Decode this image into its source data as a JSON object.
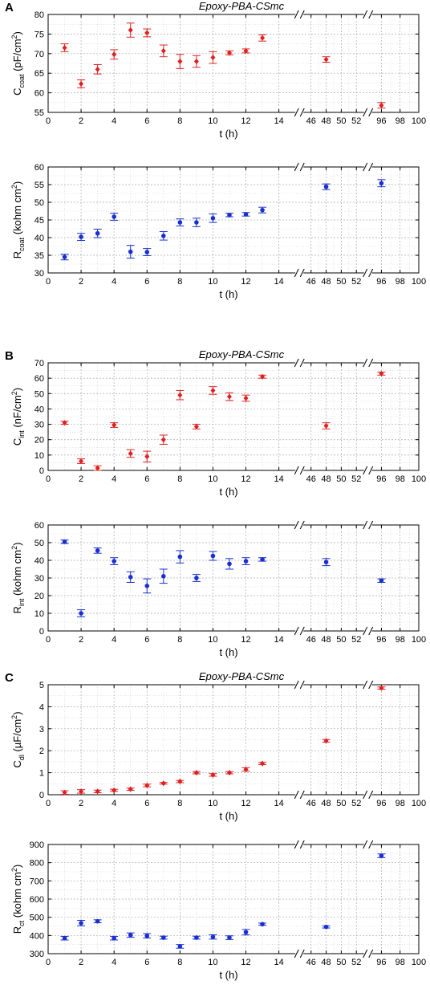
{
  "chart_data": [
    {
      "id": "A-top",
      "panel": "A",
      "type": "scatter",
      "title": "Epoxy-PBA-CSmc",
      "ylabel": {
        "base": "C",
        "sub": "coat",
        "unit_pre": " (pF/cm",
        "sup": "2",
        "unit_post": ")"
      },
      "xlabel": "t (h)",
      "ylim": [
        55,
        80
      ],
      "yticks": [
        55,
        60,
        65,
        70,
        75,
        80
      ],
      "xticks": [
        "0",
        "2",
        "4",
        "6",
        "8",
        "10",
        "12",
        "14",
        "46",
        "48",
        "50",
        "52",
        "96",
        "98",
        "100"
      ],
      "color": "#e02020",
      "marker": "diamond",
      "grid": true,
      "x": [
        "1",
        "2",
        "3",
        "4",
        "5",
        "6",
        "7",
        "8",
        "9",
        "10",
        "11",
        "12",
        "13",
        "48",
        "96"
      ],
      "values": [
        71.5,
        62.3,
        66.0,
        69.8,
        76.0,
        75.3,
        70.7,
        68.0,
        68.0,
        69.0,
        70.2,
        70.7,
        74.0,
        68.5,
        56.8
      ],
      "errors": [
        1.0,
        1.0,
        1.2,
        1.2,
        1.8,
        1.0,
        1.5,
        1.8,
        1.5,
        1.5,
        0.5,
        0.5,
        0.8,
        0.7,
        0.7
      ]
    },
    {
      "id": "A-bottom",
      "panel": "",
      "type": "scatter",
      "title": "",
      "ylabel": {
        "base": "R",
        "sub": "coat",
        "unit_pre": " (kohm cm",
        "sup": "2",
        "unit_post": ")"
      },
      "xlabel": "t (h)",
      "ylim": [
        30,
        60
      ],
      "yticks": [
        30,
        35,
        40,
        45,
        50,
        55,
        60
      ],
      "xticks": [
        "0",
        "2",
        "4",
        "6",
        "8",
        "10",
        "12",
        "14",
        "46",
        "48",
        "50",
        "52",
        "96",
        "98",
        "100"
      ],
      "color": "#1a2fd0",
      "marker": "circle",
      "grid": true,
      "x": [
        "1",
        "2",
        "3",
        "4",
        "5",
        "6",
        "7",
        "8",
        "9",
        "10",
        "11",
        "12",
        "13",
        "48",
        "96"
      ],
      "values": [
        34.5,
        40.2,
        41.2,
        45.9,
        36.0,
        35.9,
        40.5,
        44.3,
        44.3,
        45.5,
        46.4,
        46.6,
        47.8,
        54.4,
        55.4
      ],
      "errors": [
        0.8,
        1.0,
        1.2,
        1.0,
        1.8,
        1.0,
        1.2,
        1.0,
        1.2,
        1.2,
        0.5,
        0.5,
        0.8,
        0.8,
        1.0
      ]
    },
    {
      "id": "B-top",
      "panel": "B",
      "type": "scatter",
      "title": "Epoxy-PBA-CSmc",
      "ylabel": {
        "base": "C",
        "sub": "int",
        "unit_pre": " (nF/cm",
        "sup": "2",
        "unit_post": ")"
      },
      "xlabel": "t (h)",
      "ylim": [
        0,
        70
      ],
      "yticks": [
        0,
        10,
        20,
        30,
        40,
        50,
        60,
        70
      ],
      "xticks": [
        "0",
        "2",
        "4",
        "6",
        "8",
        "10",
        "12",
        "14",
        "46",
        "48",
        "50",
        "52",
        "96",
        "98",
        "100"
      ],
      "color": "#e02020",
      "marker": "diamond",
      "grid": true,
      "x": [
        "1",
        "2",
        "3",
        "4",
        "5",
        "6",
        "7",
        "8",
        "9",
        "10",
        "11",
        "12",
        "13",
        "48",
        "96"
      ],
      "values": [
        31.0,
        6.0,
        1.5,
        29.5,
        11.0,
        9.0,
        20.0,
        49.0,
        28.5,
        52.0,
        48.0,
        47.0,
        61.0,
        29.0,
        63.0
      ],
      "errors": [
        1.0,
        1.5,
        1.5,
        1.5,
        2.5,
        3.5,
        3.0,
        3.0,
        1.5,
        2.5,
        2.5,
        2.0,
        1.0,
        2.0,
        1.0
      ]
    },
    {
      "id": "B-bottom",
      "panel": "",
      "type": "scatter",
      "title": "",
      "ylabel": {
        "base": "R",
        "sub": "int",
        "unit_pre": " (kohm cm",
        "sup": "2",
        "unit_post": ")"
      },
      "xlabel": "t (h)",
      "ylim": [
        0,
        60
      ],
      "yticks": [
        0,
        10,
        20,
        30,
        40,
        50,
        60
      ],
      "xticks": [
        "0",
        "2",
        "4",
        "6",
        "8",
        "10",
        "12",
        "14",
        "46",
        "48",
        "50",
        "52",
        "96",
        "98",
        "100"
      ],
      "color": "#1a2fd0",
      "marker": "circle",
      "grid": true,
      "x": [
        "1",
        "2",
        "3",
        "4",
        "5",
        "6",
        "7",
        "8",
        "9",
        "10",
        "11",
        "12",
        "13",
        "48",
        "96"
      ],
      "values": [
        50.5,
        10.0,
        45.5,
        39.5,
        30.5,
        25.5,
        31.0,
        42.0,
        30.0,
        42.5,
        38.0,
        39.5,
        40.5,
        39.0,
        28.5
      ],
      "errors": [
        1.0,
        2.0,
        1.5,
        2.0,
        3.0,
        4.0,
        4.0,
        3.5,
        2.0,
        2.5,
        3.0,
        2.0,
        1.0,
        2.0,
        1.0
      ]
    },
    {
      "id": "C-top",
      "panel": "C",
      "type": "scatter",
      "title": "Epoxy-PBA-CSmc",
      "ylabel": {
        "base": "C",
        "sub": "dl",
        "unit_pre": " (µF/cm",
        "sup": "2",
        "unit_post": ")"
      },
      "xlabel": "t (h)",
      "ylim": [
        0,
        5
      ],
      "yticks": [
        0,
        1,
        2,
        3,
        4,
        5
      ],
      "xticks": [
        "0",
        "2",
        "4",
        "6",
        "8",
        "10",
        "12",
        "14",
        "46",
        "48",
        "50",
        "52",
        "96",
        "98",
        "100"
      ],
      "color": "#e02020",
      "marker": "diamond",
      "grid": true,
      "x": [
        "1",
        "2",
        "3",
        "4",
        "5",
        "6",
        "7",
        "8",
        "9",
        "10",
        "11",
        "12",
        "13",
        "48",
        "96"
      ],
      "values": [
        0.1,
        0.15,
        0.15,
        0.2,
        0.25,
        0.42,
        0.52,
        0.6,
        1.0,
        0.9,
        1.0,
        1.15,
        1.42,
        2.45,
        4.85
      ],
      "errors": [
        0.08,
        0.08,
        0.06,
        0.05,
        0.05,
        0.06,
        0.04,
        0.05,
        0.05,
        0.06,
        0.05,
        0.08,
        0.05,
        0.06,
        0.05
      ]
    },
    {
      "id": "C-bottom",
      "panel": "",
      "type": "scatter",
      "title": "",
      "ylabel": {
        "base": "R",
        "sub": "ct",
        "unit_pre": " (kohm cm",
        "sup": "2",
        "unit_post": ")"
      },
      "xlabel": "t (h)",
      "ylim": [
        300,
        900
      ],
      "yticks": [
        300,
        400,
        500,
        600,
        700,
        800,
        900
      ],
      "xticks": [
        "0",
        "2",
        "4",
        "6",
        "8",
        "10",
        "12",
        "14",
        "46",
        "48",
        "50",
        "52",
        "96",
        "98",
        "100"
      ],
      "color": "#1a2fd0",
      "marker": "circle",
      "grid": true,
      "x": [
        "1",
        "2",
        "3",
        "4",
        "5",
        "6",
        "7",
        "8",
        "9",
        "10",
        "11",
        "12",
        "13",
        "48",
        "96"
      ],
      "values": [
        385,
        468,
        478,
        385,
        402,
        398,
        388,
        340,
        388,
        392,
        388,
        418,
        462,
        447,
        838
      ],
      "errors": [
        10,
        15,
        8,
        10,
        12,
        12,
        8,
        10,
        8,
        12,
        10,
        15,
        6,
        6,
        10
      ]
    }
  ]
}
